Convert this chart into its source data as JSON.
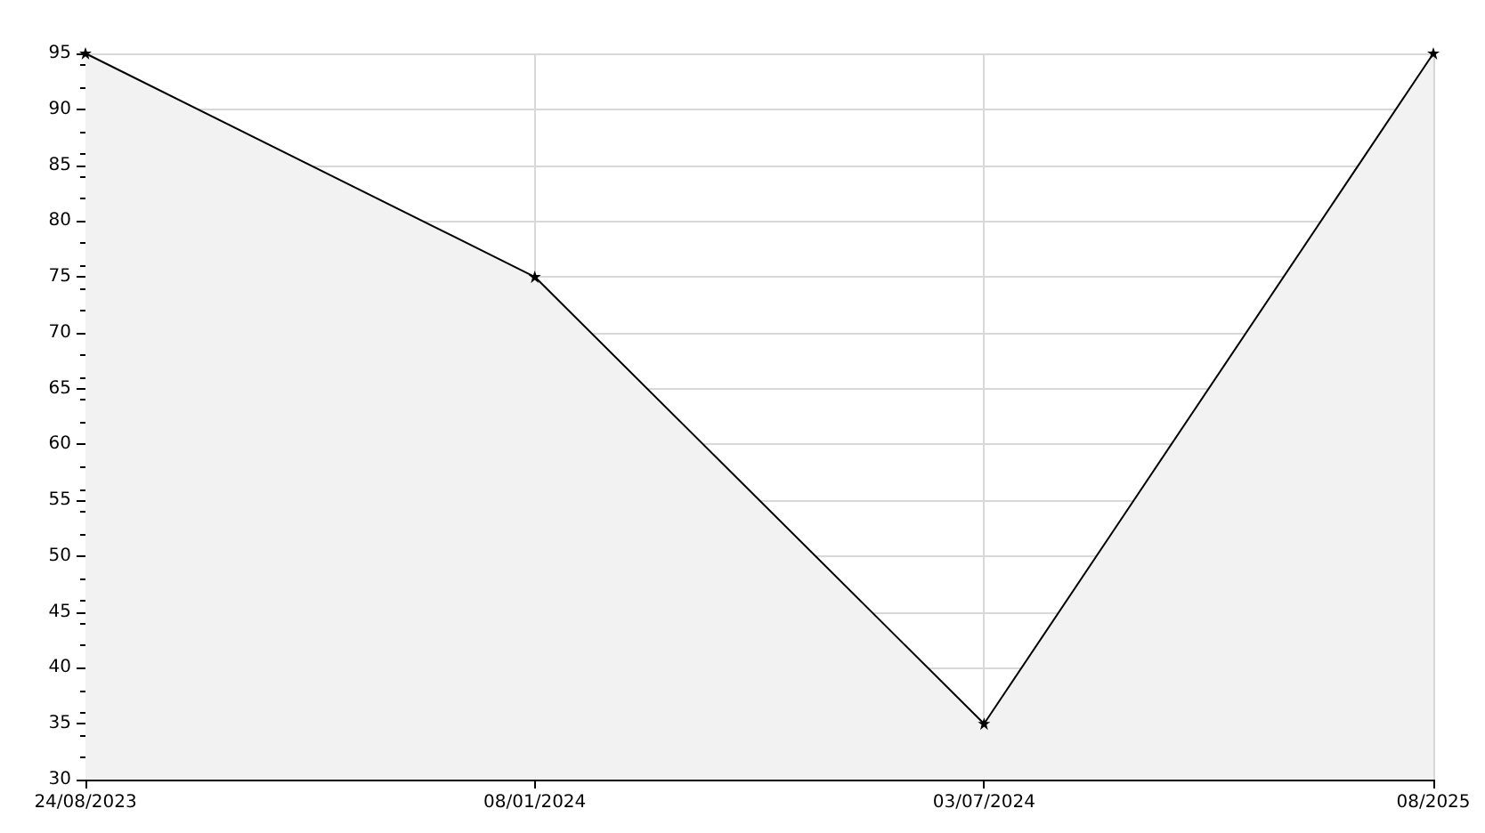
{
  "chart_data": {
    "type": "area",
    "categories": [
      "24/08/2023",
      "08/01/2024",
      "03/07/2024",
      "08/2025"
    ],
    "series": [
      {
        "color": "#000000",
        "values": [
          95,
          75,
          35,
          95
        ]
      }
    ],
    "ylim": [
      30,
      95
    ],
    "yticks": [
      30,
      35,
      40,
      45,
      50,
      55,
      60,
      65,
      70,
      75,
      80,
      85,
      90,
      95
    ],
    "grid": true,
    "marker": "star",
    "line_style": "solid"
  }
}
